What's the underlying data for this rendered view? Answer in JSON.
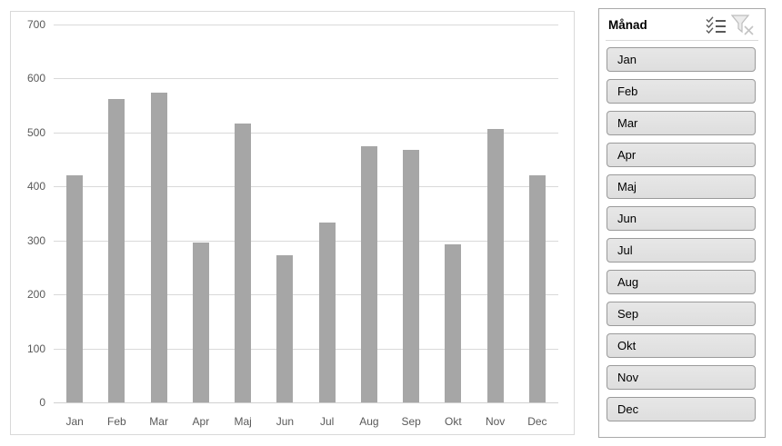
{
  "chart_data": {
    "type": "bar",
    "title": "",
    "xlabel": "",
    "ylabel": "",
    "categories": [
      "Jan",
      "Feb",
      "Mar",
      "Apr",
      "Maj",
      "Jun",
      "Jul",
      "Aug",
      "Sep",
      "Okt",
      "Nov",
      "Dec"
    ],
    "values": [
      420,
      562,
      574,
      297,
      517,
      272,
      334,
      475,
      468,
      292,
      506,
      420
    ],
    "ylim": [
      0,
      700
    ],
    "yticks": [
      0,
      100,
      200,
      300,
      400,
      500,
      600,
      700
    ],
    "grid": true,
    "legend": false,
    "bar_color": "#a6a6a6"
  },
  "slicer": {
    "title": "Månad",
    "items": [
      "Jan",
      "Feb",
      "Mar",
      "Apr",
      "Maj",
      "Jun",
      "Jul",
      "Aug",
      "Sep",
      "Okt",
      "Nov",
      "Dec"
    ],
    "icons": {
      "multi_select": "multiselect-icon",
      "clear_filter": "clear-filter-icon"
    }
  },
  "colors": {
    "bar": "#a6a6a6",
    "axis_text": "#595959",
    "gridline": "#d9d9d9",
    "chart_border": "#d9d9d9",
    "slicer_border": "#a9a9a9",
    "button_fill": "#e2e2e2",
    "button_border": "#9a9a9a",
    "icon_enabled": "#595959",
    "icon_disabled": "#c3c3c3"
  }
}
